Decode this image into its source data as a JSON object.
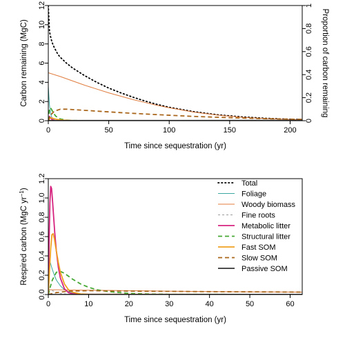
{
  "chart_data": [
    {
      "type": "line",
      "xlabel": "Time since sequestration (yr)",
      "ylabel": "Carbon remaining (MgC)",
      "ylabel_right": "Proportion of carbon remaining",
      "xlim": [
        0,
        210
      ],
      "ylim": [
        0,
        12
      ],
      "ylim_right": [
        0,
        1
      ],
      "xticks": [
        "0",
        "50",
        "100",
        "150",
        "200"
      ],
      "xtick_values": [
        0,
        50,
        100,
        150,
        200
      ],
      "yticks": [
        "0",
        "2",
        "4",
        "6",
        "8",
        "10",
        "12"
      ],
      "ytick_values": [
        0,
        2,
        4,
        6,
        8,
        10,
        12
      ],
      "yticks_right": [
        "0",
        "0.2",
        "0.4",
        "0.6",
        "0.8",
        "1"
      ],
      "ytick_values_right": [
        0,
        0.2,
        0.4,
        0.6,
        0.8,
        1
      ],
      "series": [
        {
          "name": "Total",
          "color": "#000000",
          "dash": "dotted",
          "width": 1.8,
          "x": [
            0,
            1,
            2,
            3,
            5,
            8,
            10,
            15,
            20,
            30,
            40,
            50,
            60,
            70,
            80,
            90,
            100,
            120,
            140,
            160,
            180,
            200,
            210
          ],
          "y": [
            12.0,
            9.3,
            8.7,
            8.2,
            7.6,
            6.9,
            6.6,
            6.0,
            5.5,
            4.7,
            4.0,
            3.4,
            2.9,
            2.45,
            2.05,
            1.7,
            1.4,
            0.95,
            0.62,
            0.4,
            0.25,
            0.15,
            0.12
          ]
        },
        {
          "name": "Foliage",
          "color": "#3aa8a0",
          "dash": "solid",
          "width": 1,
          "x": [
            0,
            0.5,
            1,
            2,
            3,
            4,
            6,
            8,
            10,
            15,
            210
          ],
          "y": [
            3.6,
            2.5,
            1.6,
            0.7,
            0.3,
            0.13,
            0.03,
            0.01,
            0,
            0,
            0
          ]
        },
        {
          "name": "Woody biomass",
          "color": "#e07b3c",
          "dash": "solid",
          "width": 1,
          "x": [
            0,
            10,
            20,
            30,
            40,
            50,
            60,
            70,
            80,
            90,
            100,
            120,
            140,
            160,
            180,
            200,
            210
          ],
          "y": [
            5.0,
            4.6,
            4.15,
            3.7,
            3.3,
            2.9,
            2.55,
            2.2,
            1.9,
            1.6,
            1.35,
            0.9,
            0.58,
            0.36,
            0.22,
            0.13,
            0.1
          ]
        },
        {
          "name": "Fine roots",
          "color": "#9a9a9a",
          "dash": "dashed-fine",
          "width": 1,
          "x": [
            0,
            1,
            2,
            3,
            4,
            6,
            8,
            210
          ],
          "y": [
            0.2,
            0.12,
            0.06,
            0.03,
            0.01,
            0,
            0,
            0
          ]
        },
        {
          "name": "Metabolic litter",
          "color": "#d6227e",
          "dash": "solid",
          "width": 1.8,
          "x": [
            0,
            0.5,
            1,
            2,
            3,
            4,
            6,
            8,
            210
          ],
          "y": [
            0,
            0.35,
            0.45,
            0.28,
            0.12,
            0.05,
            0.01,
            0,
            0
          ]
        },
        {
          "name": "Structural litter",
          "color": "#44a832",
          "dash": "dashed",
          "width": 1.8,
          "x": [
            0,
            1,
            2,
            3,
            4,
            6,
            8,
            10,
            15,
            20,
            30,
            40,
            210
          ],
          "y": [
            0,
            1.2,
            1.35,
            1.1,
            0.85,
            0.5,
            0.3,
            0.18,
            0.06,
            0.02,
            0,
            0,
            0
          ]
        },
        {
          "name": "Fast SOM",
          "color": "#f0a020",
          "dash": "solid",
          "width": 1.8,
          "x": [
            0,
            1,
            2,
            3,
            5,
            8,
            12,
            20,
            30,
            210
          ],
          "y": [
            0,
            0.25,
            0.3,
            0.28,
            0.2,
            0.12,
            0.06,
            0.02,
            0,
            0
          ]
        },
        {
          "name": "Slow SOM",
          "color": "#a9651a",
          "dash": "dashed",
          "width": 1.8,
          "x": [
            0,
            2,
            5,
            10,
            15,
            20,
            30,
            40,
            50,
            60,
            80,
            100,
            120,
            140,
            160,
            180,
            200,
            210
          ],
          "y": [
            0,
            0.6,
            1.0,
            1.2,
            1.2,
            1.16,
            1.08,
            1.0,
            0.92,
            0.84,
            0.7,
            0.57,
            0.45,
            0.36,
            0.28,
            0.21,
            0.16,
            0.14
          ]
        },
        {
          "name": "Passive SOM",
          "color": "#333333",
          "dash": "solid",
          "width": 1.8,
          "x": [
            0,
            210
          ],
          "y": [
            0.01,
            0.03
          ]
        }
      ]
    },
    {
      "type": "line",
      "xlabel": "Time since sequestration (yr)",
      "ylabel": "Respired carbon (MgC yr",
      "ylabel_sup": "−1",
      "ylabel_end": ")",
      "xlim": [
        0,
        63
      ],
      "ylim": [
        0,
        1.2
      ],
      "xticks": [
        "0",
        "10",
        "20",
        "30",
        "40",
        "50",
        "60"
      ],
      "xtick_values": [
        0,
        10,
        20,
        30,
        40,
        50,
        60
      ],
      "yticks": [
        "0.0",
        "0.2",
        "0.4",
        "0.6",
        "0.8",
        "1.0",
        "1.2"
      ],
      "ytick_values": [
        0,
        0.2,
        0.4,
        0.6,
        0.8,
        1.0,
        1.2
      ],
      "legend_position": "top-right",
      "series": [
        {
          "name": "Total",
          "color": "#000000",
          "dash": "dotted",
          "width": 1.8,
          "x": [],
          "y": []
        },
        {
          "name": "Foliage",
          "color": "#3aa8a0",
          "dash": "solid",
          "width": 1,
          "x": [
            0,
            0.2,
            0.5,
            1,
            1.5,
            2,
            3,
            4,
            5,
            6,
            8,
            63
          ],
          "y": [
            0.42,
            0.38,
            0.33,
            0.26,
            0.2,
            0.15,
            0.09,
            0.05,
            0.03,
            0.015,
            0.005,
            0
          ]
        },
        {
          "name": "Woody biomass",
          "color": "#e07b3c",
          "dash": "solid",
          "width": 1,
          "x": [
            0,
            10,
            20,
            30,
            40,
            50,
            63
          ],
          "y": [
            0.05,
            0.045,
            0.04,
            0.035,
            0.03,
            0.028,
            0.025
          ]
        },
        {
          "name": "Fine roots",
          "color": "#9a9a9a",
          "dash": "dashed-fine",
          "width": 1,
          "x": [
            0,
            0.5,
            1,
            2,
            3,
            5,
            63
          ],
          "y": [
            0.06,
            0.05,
            0.04,
            0.025,
            0.012,
            0.004,
            0
          ]
        },
        {
          "name": "Metabolic litter",
          "color": "#d6227e",
          "dash": "solid",
          "width": 1.8,
          "x": [
            0,
            0.2,
            0.4,
            0.6,
            0.8,
            1.0,
            1.3,
            1.6,
            2,
            2.5,
            3,
            4,
            5,
            6,
            8,
            63
          ],
          "y": [
            0,
            0.55,
            0.95,
            1.12,
            1.1,
            1.0,
            0.82,
            0.64,
            0.45,
            0.28,
            0.17,
            0.06,
            0.02,
            0.008,
            0.002,
            0
          ]
        },
        {
          "name": "Structural litter",
          "color": "#44a832",
          "dash": "dashed",
          "width": 1.8,
          "x": [
            0,
            0.5,
            1,
            2,
            3,
            4,
            5,
            6,
            8,
            10,
            12,
            15,
            20,
            25,
            30,
            63
          ],
          "y": [
            0,
            0.08,
            0.15,
            0.23,
            0.24,
            0.22,
            0.19,
            0.16,
            0.11,
            0.075,
            0.05,
            0.03,
            0.012,
            0.005,
            0.002,
            0
          ]
        },
        {
          "name": "Fast SOM",
          "color": "#f0a020",
          "dash": "solid",
          "width": 1.8,
          "x": [
            0,
            0.3,
            0.6,
            0.9,
            1.2,
            1.5,
            2,
            2.5,
            3,
            4,
            5,
            6,
            8,
            10,
            63
          ],
          "y": [
            0,
            0.25,
            0.48,
            0.62,
            0.63,
            0.58,
            0.45,
            0.33,
            0.23,
            0.11,
            0.05,
            0.025,
            0.006,
            0.002,
            0
          ]
        },
        {
          "name": "Slow SOM",
          "color": "#a9651a",
          "dash": "dashed",
          "width": 1.8,
          "x": [
            0,
            2,
            5,
            10,
            15,
            20,
            30,
            40,
            50,
            63
          ],
          "y": [
            0,
            0.02,
            0.035,
            0.04,
            0.038,
            0.036,
            0.033,
            0.03,
            0.028,
            0.025
          ]
        },
        {
          "name": "Passive SOM",
          "color": "#333333",
          "dash": "solid",
          "width": 1.8,
          "x": [
            0,
            63
          ],
          "y": [
            0,
            0.001
          ]
        }
      ]
    }
  ]
}
